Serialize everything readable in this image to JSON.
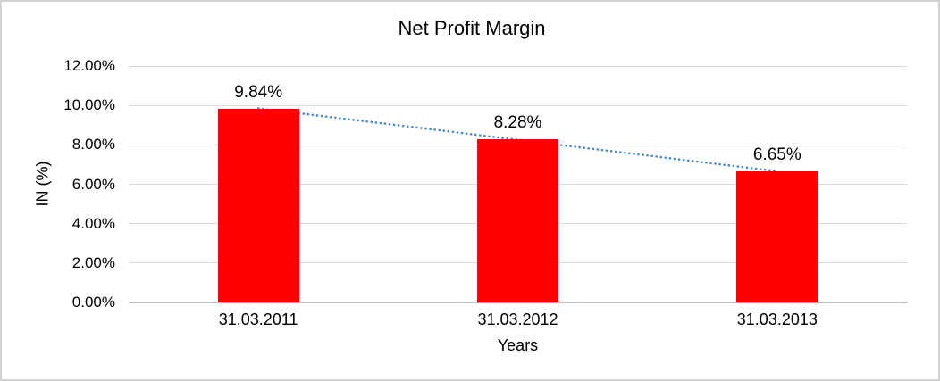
{
  "chart_data": {
    "type": "bar",
    "title": "Net Profit Margin",
    "xlabel": "Years",
    "ylabel": "IN (%)",
    "categories": [
      "31.03.2011",
      "31.03.2012",
      "31.03.2013"
    ],
    "values": [
      9.84,
      8.28,
      6.65
    ],
    "data_labels": [
      "9.84%",
      "8.28%",
      "6.65%"
    ],
    "ylim": [
      0,
      12
    ],
    "yticks": [
      0,
      2,
      4,
      6,
      8,
      10,
      12
    ],
    "ytick_labels": [
      "0.00%",
      "2.00%",
      "4.00%",
      "6.00%",
      "8.00%",
      "10.00%",
      "12.00%"
    ],
    "grid": true,
    "legend": "none",
    "bar_color": "#ff0000",
    "gridline_color": "#d9d9d9",
    "axis_line_color": "#bfbfbf",
    "text_color": "#000000",
    "trendline": {
      "type": "linear",
      "style": "dotted",
      "color": "#4a89c8"
    }
  }
}
